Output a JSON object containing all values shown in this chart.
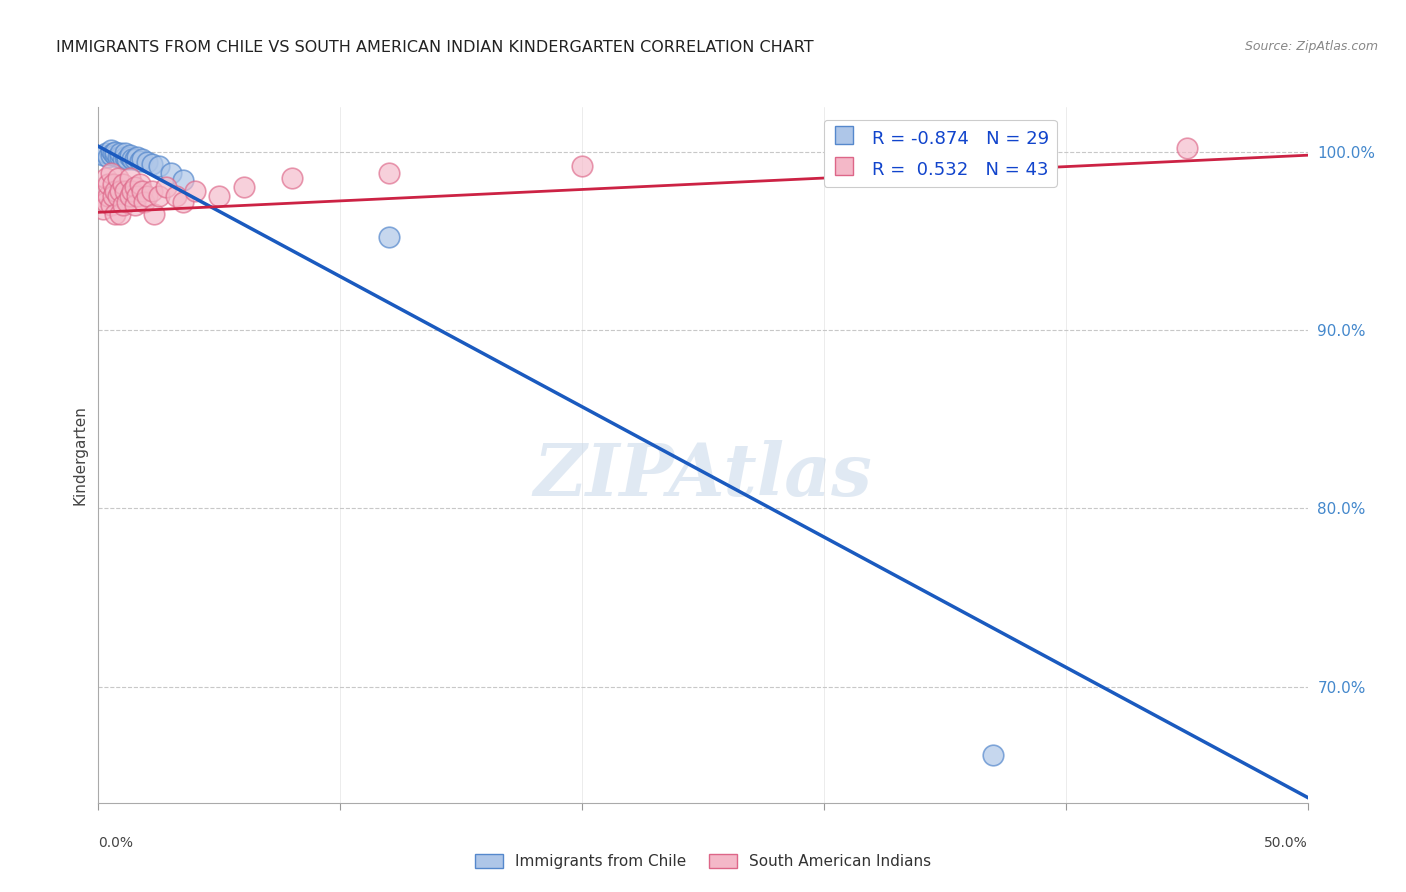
{
  "title": "IMMIGRANTS FROM CHILE VS SOUTH AMERICAN INDIAN KINDERGARTEN CORRELATION CHART",
  "source": "Source: ZipAtlas.com",
  "ylabel": "Kindergarten",
  "xlim": [
    0.0,
    0.5
  ],
  "ylim": [
    0.635,
    1.025
  ],
  "watermark": "ZIPAtlas",
  "legend_blue_label": "Immigrants from Chile",
  "legend_pink_label": "South American Indians",
  "blue_R": "-0.874",
  "blue_N": "29",
  "pink_R": "0.532",
  "pink_N": "43",
  "blue_fill_color": "#aec6e8",
  "pink_fill_color": "#f4b8c8",
  "blue_edge_color": "#5588cc",
  "pink_edge_color": "#dd6688",
  "blue_line_color": "#1a5abf",
  "pink_line_color": "#cc2244",
  "blue_scatter_x": [
    0.002,
    0.003,
    0.004,
    0.005,
    0.005,
    0.006,
    0.007,
    0.007,
    0.008,
    0.009,
    0.009,
    0.01,
    0.011,
    0.011,
    0.012,
    0.013,
    0.013,
    0.014,
    0.015,
    0.016,
    0.017,
    0.018,
    0.02,
    0.022,
    0.025,
    0.03,
    0.035,
    0.12,
    0.37
  ],
  "blue_scatter_y": [
    0.998,
    0.999,
    0.997,
    0.998,
    1.001,
    0.999,
    0.998,
    1.0,
    0.997,
    0.997,
    0.999,
    0.996,
    0.997,
    0.999,
    0.996,
    0.997,
    0.998,
    0.996,
    0.996,
    0.997,
    0.995,
    0.996,
    0.994,
    0.993,
    0.992,
    0.988,
    0.984,
    0.952,
    0.662
  ],
  "pink_scatter_x": [
    0.001,
    0.002,
    0.003,
    0.003,
    0.004,
    0.004,
    0.005,
    0.005,
    0.006,
    0.006,
    0.007,
    0.007,
    0.008,
    0.008,
    0.009,
    0.009,
    0.01,
    0.01,
    0.011,
    0.012,
    0.013,
    0.013,
    0.014,
    0.015,
    0.015,
    0.016,
    0.017,
    0.018,
    0.019,
    0.02,
    0.022,
    0.023,
    0.025,
    0.028,
    0.032,
    0.035,
    0.04,
    0.05,
    0.06,
    0.08,
    0.12,
    0.2,
    0.45
  ],
  "pink_scatter_y": [
    0.975,
    0.968,
    0.985,
    0.972,
    0.975,
    0.982,
    0.988,
    0.97,
    0.982,
    0.975,
    0.978,
    0.965,
    0.975,
    0.985,
    0.978,
    0.965,
    0.982,
    0.97,
    0.978,
    0.972,
    0.985,
    0.975,
    0.978,
    0.98,
    0.97,
    0.975,
    0.982,
    0.978,
    0.972,
    0.975,
    0.978,
    0.965,
    0.975,
    0.98,
    0.975,
    0.972,
    0.978,
    0.975,
    0.98,
    0.985,
    0.988,
    0.992,
    1.002
  ],
  "blue_trend_x": [
    0.0,
    0.5
  ],
  "blue_trend_y": [
    1.003,
    0.638
  ],
  "pink_trend_x": [
    0.0,
    0.5
  ],
  "pink_trend_y": [
    0.966,
    0.998
  ],
  "ytick_vals": [
    0.7,
    0.8,
    0.9,
    1.0
  ],
  "ytick_labels": [
    "70.0%",
    "80.0%",
    "90.0%",
    "100.0%"
  ],
  "xtick_vals": [
    0.0,
    0.1,
    0.2,
    0.3,
    0.4,
    0.5
  ],
  "xtick_major": [
    0.0,
    0.5
  ],
  "grid_color": "#c8c8c8",
  "background_color": "#ffffff"
}
